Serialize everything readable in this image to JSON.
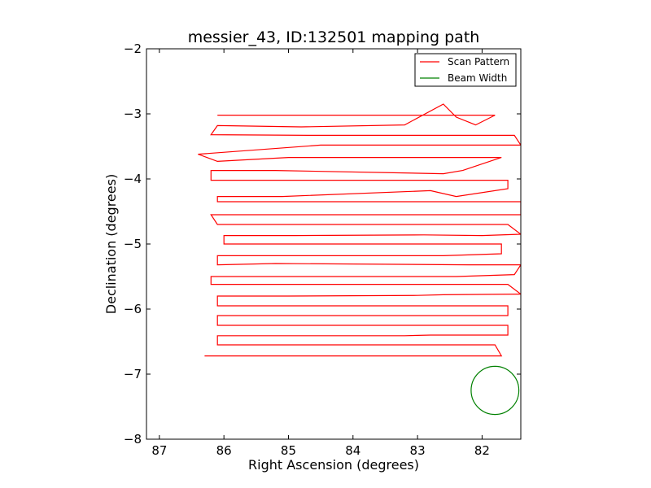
{
  "chart_data": {
    "type": "line",
    "title": "messier_43, ID:132501 mapping path",
    "xlabel": "Right Ascension (degrees)",
    "ylabel": "Declination (degrees)",
    "xlim": [
      87.2,
      81.4
    ],
    "ylim": [
      -8,
      -2
    ],
    "x_ticks": [
      87,
      86,
      85,
      84,
      83,
      82
    ],
    "x_tick_labels": [
      "87",
      "86",
      "85",
      "84",
      "83",
      "82"
    ],
    "y_ticks": [
      -2,
      -3,
      -4,
      -5,
      -6,
      -7,
      -8
    ],
    "y_tick_labels": [
      "−2",
      "−3",
      "−4",
      "−5",
      "−6",
      "−7",
      "−8"
    ],
    "grid": false,
    "legend": {
      "position": "top-right"
    },
    "series": [
      {
        "name": "Scan Pattern",
        "color": "#ff0000",
        "x": [
          86.1,
          84.5,
          82.7,
          81.8,
          82.1,
          82.4,
          82.6,
          83.2,
          84.8,
          86.1,
          86.2,
          84.7,
          82.7,
          81.5,
          81.4,
          82.5,
          84.5,
          86.4,
          86.1,
          85.0,
          82.6,
          81.7,
          82.3,
          82.6,
          85.2,
          86.2,
          86.2,
          85.2,
          82.8,
          81.6,
          81.6,
          82.4,
          82.8,
          85.1,
          86.1,
          86.1,
          85.0,
          83.1,
          81.4,
          81.4,
          83.2,
          84.6,
          86.2,
          86.1,
          85.2,
          82.7,
          81.6,
          81.4,
          82.0,
          82.9,
          84.9,
          86.0,
          86.0,
          85.1,
          82.7,
          81.7,
          81.7,
          82.6,
          83.0,
          84.9,
          86.1,
          86.1,
          85.2,
          82.2,
          81.4,
          81.5,
          82.4,
          82.9,
          84.9,
          86.2,
          86.2,
          85.0,
          82.6,
          81.6,
          81.4,
          82.6,
          83.0,
          85.0,
          86.1,
          86.1,
          84.7,
          82.9,
          81.6,
          81.6,
          82.5,
          83.1,
          85.0,
          86.1,
          86.1,
          85.0,
          82.7,
          81.6,
          81.6,
          82.8,
          83.2,
          85.0,
          86.1,
          86.1,
          85.1,
          82.7,
          81.8,
          81.7,
          82.5,
          85.0,
          86.3
        ],
        "y": [
          -3.02,
          -3.02,
          -3.02,
          -3.02,
          -3.17,
          -3.05,
          -2.85,
          -3.17,
          -3.2,
          -3.18,
          -3.32,
          -3.33,
          -3.33,
          -3.33,
          -3.48,
          -3.48,
          -3.48,
          -3.62,
          -3.73,
          -3.67,
          -3.67,
          -3.67,
          -3.87,
          -3.92,
          -3.87,
          -3.87,
          -4.02,
          -4.02,
          -4.02,
          -4.02,
          -4.15,
          -4.27,
          -4.18,
          -4.27,
          -4.27,
          -4.35,
          -4.35,
          -4.35,
          -4.35,
          -4.55,
          -4.55,
          -4.55,
          -4.55,
          -4.7,
          -4.7,
          -4.7,
          -4.7,
          -4.85,
          -4.87,
          -4.86,
          -4.87,
          -4.87,
          -5.0,
          -5.0,
          -5.0,
          -5.0,
          -5.15,
          -5.18,
          -5.18,
          -5.18,
          -5.18,
          -5.32,
          -5.3,
          -5.32,
          -5.32,
          -5.47,
          -5.5,
          -5.5,
          -5.5,
          -5.5,
          -5.62,
          -5.62,
          -5.62,
          -5.62,
          -5.77,
          -5.78,
          -5.79,
          -5.8,
          -5.8,
          -5.95,
          -5.95,
          -5.95,
          -5.95,
          -6.1,
          -6.1,
          -6.1,
          -6.1,
          -6.1,
          -6.25,
          -6.25,
          -6.25,
          -6.25,
          -6.4,
          -6.4,
          -6.41,
          -6.41,
          -6.41,
          -6.55,
          -6.55,
          -6.55,
          -6.55,
          -6.72,
          -6.72,
          -6.72,
          -6.72
        ]
      },
      {
        "name": "Beam Width",
        "color": "#008000",
        "type": "circle",
        "center": [
          81.8,
          -7.25
        ],
        "radius_deg": 0.37
      }
    ]
  }
}
